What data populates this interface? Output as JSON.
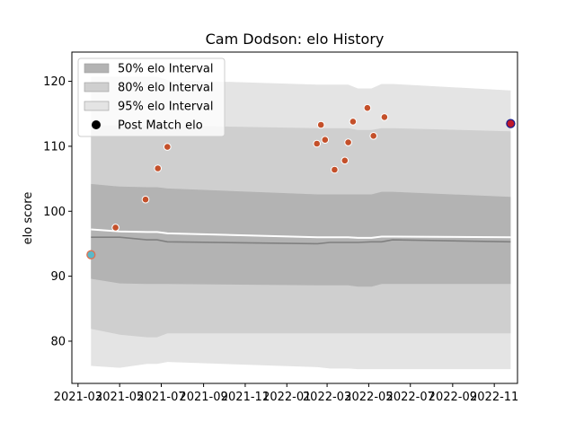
{
  "chart_data": {
    "type": "line",
    "title": "Cam Dodson: elo History",
    "xlabel": "",
    "ylabel": "elo score",
    "xlim": [
      "2021-02-20",
      "2022-12-05"
    ],
    "ylim": [
      73.5,
      124.5
    ],
    "x_ticks": [
      "2021-03",
      "2021-05",
      "2021-07",
      "2021-09",
      "2021-11",
      "2022-01",
      "2022-03",
      "2022-05",
      "2022-07",
      "2022-09",
      "2022-11"
    ],
    "x_tick_dates": [
      "2021-03-01",
      "2021-05-01",
      "2021-07-01",
      "2021-09-01",
      "2021-11-01",
      "2022-01-01",
      "2022-03-01",
      "2022-05-01",
      "2022-07-01",
      "2022-09-01",
      "2022-11-01"
    ],
    "y_ticks": [
      80,
      90,
      100,
      110,
      120
    ],
    "legend": {
      "placement": "upper-left",
      "entries": [
        "50% elo Interval",
        "80% elo Interval",
        "95% elo Interval",
        "Post Match elo"
      ]
    },
    "colors": {
      "band_50": "#b3b3b3",
      "band_80": "#cfcfcf",
      "band_95": "#e4e4e4",
      "median_line": "#808080",
      "mean_line": "#ffffff",
      "point_fill": "#c4502a",
      "first_point_fill": "#5bb8c8",
      "last_point_fill": "#c0182a",
      "last_point_edge": "#1a1a8c"
    },
    "bands": {
      "dates": [
        "2021-03-20",
        "2021-05-01",
        "2021-06-10",
        "2021-06-25",
        "2021-07-10",
        "2022-02-15",
        "2022-03-05",
        "2022-04-01",
        "2022-04-15",
        "2022-05-05",
        "2022-05-20",
        "2022-06-05",
        "2022-11-25"
      ],
      "p95_high": [
        120.7,
        120.7,
        120.7,
        120.7,
        120.2,
        119.5,
        119.5,
        119.5,
        118.9,
        118.9,
        119.6,
        119.6,
        118.6
      ],
      "p80_high": [
        113.2,
        113.2,
        113.2,
        113.2,
        113.2,
        112.8,
        112.8,
        112.8,
        112.5,
        112.5,
        112.8,
        112.8,
        112.3
      ],
      "p50_high": [
        104.2,
        103.8,
        103.7,
        103.7,
        103.5,
        102.6,
        102.6,
        102.6,
        102.6,
        102.6,
        103.0,
        103.0,
        102.2
      ],
      "p50_low": [
        89.6,
        88.9,
        88.8,
        88.8,
        88.8,
        88.6,
        88.6,
        88.6,
        88.4,
        88.4,
        88.8,
        88.8,
        88.8
      ],
      "p80_low": [
        81.9,
        81.0,
        80.6,
        80.6,
        81.2,
        81.2,
        81.2,
        81.2,
        81.2,
        81.2,
        81.2,
        81.2,
        81.2
      ],
      "p95_low": [
        76.2,
        75.9,
        76.5,
        76.5,
        76.8,
        76.0,
        75.8,
        75.8,
        75.7,
        75.7,
        75.7,
        75.7,
        75.7
      ]
    },
    "series": [
      {
        "role": "median",
        "x": [
          "2021-03-20",
          "2021-05-01",
          "2021-06-10",
          "2021-06-25",
          "2021-07-10",
          "2022-02-15",
          "2022-03-05",
          "2022-04-01",
          "2022-04-15",
          "2022-05-05",
          "2022-05-20",
          "2022-06-05",
          "2022-11-25"
        ],
        "values": [
          96.0,
          96.0,
          95.6,
          95.6,
          95.3,
          95.0,
          95.2,
          95.2,
          95.2,
          95.3,
          95.3,
          95.6,
          95.3
        ]
      },
      {
        "role": "mean",
        "x": [
          "2021-03-20",
          "2021-05-01",
          "2021-06-10",
          "2021-06-25",
          "2021-07-10",
          "2022-02-15",
          "2022-03-05",
          "2022-04-01",
          "2022-04-15",
          "2022-05-05",
          "2022-05-20",
          "2022-06-05",
          "2022-11-25"
        ],
        "values": [
          97.2,
          96.9,
          96.8,
          96.8,
          96.6,
          96.0,
          96.0,
          96.0,
          95.9,
          95.9,
          96.1,
          96.1,
          96.0
        ]
      },
      {
        "name": "Post Match elo",
        "x": [
          "2021-03-20",
          "2021-04-25",
          "2021-06-08",
          "2021-06-26",
          "2021-07-10",
          "2022-02-14",
          "2022-02-20",
          "2022-02-26",
          "2022-03-12",
          "2022-03-27",
          "2022-04-01",
          "2022-04-08",
          "2022-04-29",
          "2022-05-08",
          "2022-05-24",
          "2022-11-25"
        ],
        "values": [
          93.3,
          97.5,
          101.8,
          106.6,
          109.9,
          110.4,
          113.3,
          111.0,
          106.4,
          107.8,
          110.6,
          113.8,
          115.9,
          111.6,
          114.5,
          113.5
        ]
      }
    ]
  }
}
